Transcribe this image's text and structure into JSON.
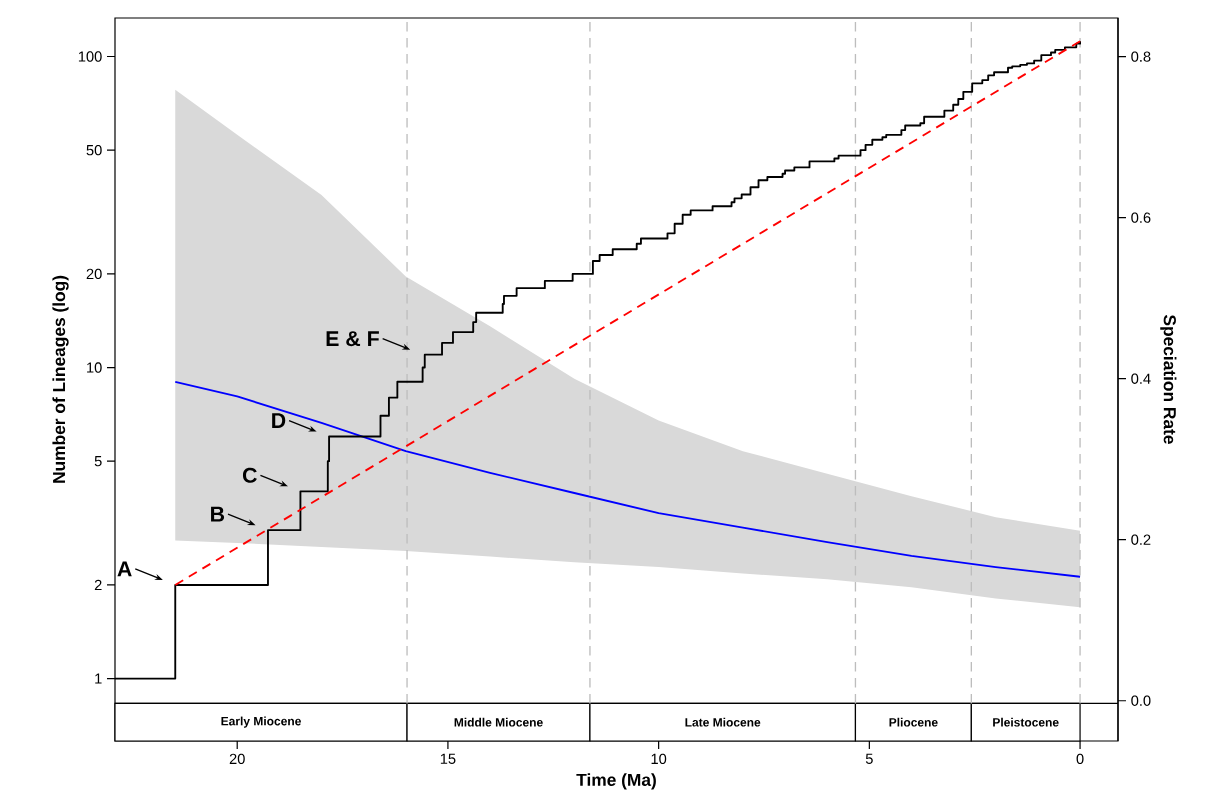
{
  "chart_data": {
    "type": "step",
    "xlabel": "Time (Ma)",
    "ylabel": "Number of Lineages (log)",
    "y2label": "Speciation Rate",
    "log": "y",
    "xlim": [
      22.9,
      -0.9
    ],
    "ylim": [
      0.63,
      133
    ],
    "y2lim": [
      -0.05,
      0.848
    ],
    "xticks": [
      20,
      15,
      10,
      5,
      0
    ],
    "yticks": [
      1,
      2,
      5,
      10,
      20,
      50,
      100
    ],
    "y2ticks": [
      {
        "value": 0,
        "label": "0.0"
      },
      {
        "value": 0.2,
        "label": "0.2"
      },
      {
        "value": 0.4,
        "label": "0.4"
      },
      {
        "value": 0.6,
        "label": "0.6"
      },
      {
        "value": 0.8,
        "label": "0.8"
      }
    ],
    "series": [
      {
        "type": "line",
        "axis": "y2",
        "color": "#0000ff",
        "x": [
          21.47,
          20,
          18,
          16,
          14,
          12,
          10,
          8,
          6,
          4,
          2,
          0
        ],
        "values": [
          0.396,
          0.378,
          0.345,
          0.31,
          0.283,
          0.258,
          0.233,
          0.215,
          0.197,
          0.18,
          0.166,
          0.154
        ],
        "lower": [
          0.199,
          0.196,
          0.191,
          0.186,
          0.179,
          0.172,
          0.166,
          0.158,
          0.151,
          0.141,
          0.127,
          0.116
        ],
        "upper": [
          0.759,
          0.703,
          0.628,
          0.527,
          0.465,
          0.4,
          0.348,
          0.31,
          0.282,
          0.254,
          0.228,
          0.211
        ]
      },
      {
        "type": "step",
        "color": "#000000",
        "x": [
          22.9,
          21.47,
          19.27,
          18.5,
          17.85,
          17.82,
          16.6,
          16.4,
          16.2,
          15.6,
          15.55,
          15.14,
          14.88,
          14.4,
          14.33,
          13.7,
          13.67,
          13.37,
          12.7,
          12.04,
          11.56,
          11.4,
          11.09,
          10.52,
          10.42,
          9.79,
          9.62,
          9.43,
          9.24,
          8.72,
          8.27,
          8.2,
          8.03,
          7.82,
          7.63,
          7.42,
          7.06,
          7.0,
          6.78,
          6.42,
          5.83,
          5.73,
          5.21,
          5.09,
          4.93,
          4.69,
          4.6,
          4.24,
          4.15,
          3.79,
          3.7,
          3.22,
          3.01,
          2.89,
          2.77,
          2.56,
          2.32,
          2.18,
          2.04,
          1.71,
          1.61,
          1.42,
          1.26,
          1.09,
          0.92,
          0.69,
          0.59,
          0.36,
          0.09,
          0
        ],
        "values": [
          1,
          2,
          3,
          4,
          5,
          6,
          7,
          8,
          9,
          10,
          11,
          12,
          13,
          14,
          15,
          16,
          17,
          18,
          19,
          20,
          22,
          23,
          24,
          25,
          26,
          27,
          29,
          31,
          32,
          33,
          34,
          35,
          36,
          38,
          40,
          41,
          42,
          43,
          44,
          46,
          47,
          48,
          50,
          52,
          54,
          55,
          56,
          58,
          60,
          61,
          64,
          67,
          70,
          73,
          77,
          82,
          84,
          87,
          89,
          92,
          93,
          94,
          95,
          97,
          101,
          103,
          105,
          107,
          110,
          112
        ]
      },
      {
        "type": "line",
        "color": "#ff0000",
        "line_style": "dashed",
        "x": [
          21.47,
          0
        ],
        "values": [
          2,
          112
        ]
      }
    ],
    "ref_lines": [
      {
        "axis": "x",
        "value": 15.97,
        "color": "#bdbdbd",
        "line_style": "dashed"
      },
      {
        "axis": "x",
        "value": 11.63,
        "color": "#bdbdbd",
        "line_style": "dashed"
      },
      {
        "axis": "x",
        "value": 5.33,
        "color": "#bdbdbd",
        "line_style": "dashed"
      },
      {
        "axis": "x",
        "value": 2.58,
        "color": "#bdbdbd",
        "line_style": "dashed"
      },
      {
        "axis": "x",
        "value": 0,
        "color": "#bdbdbd",
        "line_style": "dashed"
      }
    ],
    "bands": [
      {
        "axis": "x",
        "from": 22.9,
        "to": 15.97,
        "label": "Early Miocene",
        "color": "#ffffff"
      },
      {
        "axis": "x",
        "from": 15.97,
        "to": 11.63,
        "label": "Middle Miocene",
        "color": "#ffffff"
      },
      {
        "axis": "x",
        "from": 11.63,
        "to": 5.33,
        "label": "Late Miocene",
        "color": "#ffffff"
      },
      {
        "axis": "x",
        "from": 5.33,
        "to": 2.58,
        "label": "Pliocene",
        "color": "#ffffff"
      },
      {
        "axis": "x",
        "from": 2.58,
        "to": 0,
        "label": "Pleistocene",
        "color": "#ffffff"
      }
    ],
    "annotations": [
      {
        "text": "A",
        "x": 21.47,
        "y": 2
      },
      {
        "text": "B",
        "x": 19.27,
        "y": 3
      },
      {
        "text": "C",
        "x": 18.5,
        "y": 4
      },
      {
        "text": "D",
        "x": 17.82,
        "y": 6
      },
      {
        "text": "E & F",
        "x": 15.6,
        "y": 11
      }
    ]
  }
}
